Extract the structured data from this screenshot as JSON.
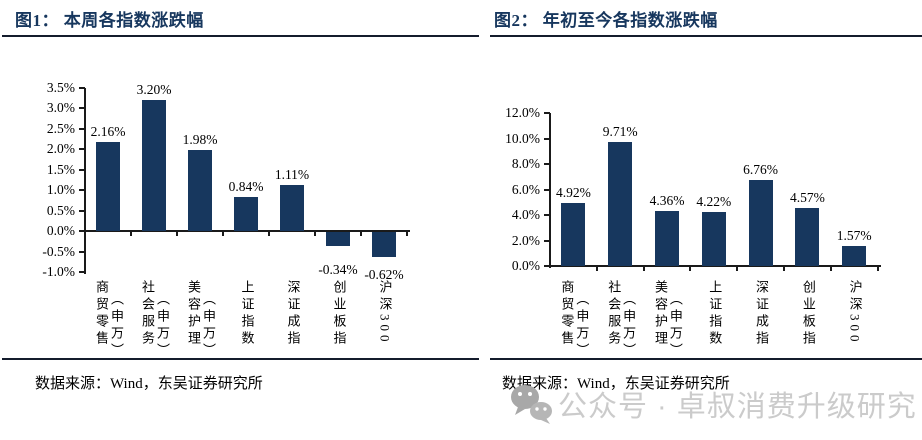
{
  "watermark": {
    "text": "公众号 · 卓叔消费升级研究",
    "icon": "wechat-icon",
    "color": "#cbcbcb"
  },
  "chart_data": [
    {
      "type": "bar",
      "title": "图1： 本周各指数涨跌幅",
      "source": "数据来源：Wind，东吴证券研究所",
      "categories": [
        {
          "main": "商贸零售",
          "sub": "（申万）"
        },
        {
          "main": "社会服务",
          "sub": "（申万）"
        },
        {
          "main": "美容护理",
          "sub": "（申万）"
        },
        {
          "main": "上证指数",
          "sub": ""
        },
        {
          "main": "深证成指",
          "sub": ""
        },
        {
          "main": "创业板指",
          "sub": ""
        },
        {
          "main": "沪深300",
          "sub": ""
        }
      ],
      "values": [
        2.16,
        3.2,
        1.98,
        0.84,
        1.11,
        -0.34,
        -0.62
      ],
      "point_labels": [
        "2.16%",
        "3.20%",
        "1.98%",
        "0.84%",
        "1.11%",
        "-0.34%",
        "-0.62%"
      ],
      "ylim": [
        -1.0,
        3.5
      ],
      "yticks": [
        {
          "v": 3.5,
          "label": "3.5%"
        },
        {
          "v": 3.0,
          "label": "3.0%"
        },
        {
          "v": 2.5,
          "label": "2.5%"
        },
        {
          "v": 2.0,
          "label": "2.0%"
        },
        {
          "v": 1.5,
          "label": "1.5%"
        },
        {
          "v": 1.0,
          "label": "1.0%"
        },
        {
          "v": 0.5,
          "label": "0.5%"
        },
        {
          "v": 0.0,
          "label": "0.0%"
        },
        {
          "v": -0.5,
          "label": "-0.5%"
        },
        {
          "v": -1.0,
          "label": "-1.0%"
        }
      ],
      "bar_color": "#17375E",
      "grid": false,
      "legend": null
    },
    {
      "type": "bar",
      "title": "图2： 年初至今各指数涨跌幅",
      "source": "数据来源：Wind，东吴证券研究所",
      "categories": [
        {
          "main": "商贸零售",
          "sub": "（申万）"
        },
        {
          "main": "社会服务",
          "sub": "（申万）"
        },
        {
          "main": "美容护理",
          "sub": "（申万）"
        },
        {
          "main": "上证指数",
          "sub": ""
        },
        {
          "main": "深证成指",
          "sub": ""
        },
        {
          "main": "创业板指",
          "sub": ""
        },
        {
          "main": "沪深300",
          "sub": ""
        }
      ],
      "values": [
        4.92,
        9.71,
        4.36,
        4.22,
        6.76,
        4.57,
        1.57
      ],
      "point_labels": [
        "4.92%",
        "9.71%",
        "4.36%",
        "4.22%",
        "6.76%",
        "4.57%",
        "1.57%"
      ],
      "ylim": [
        0.0,
        12.0
      ],
      "yticks": [
        {
          "v": 12.0,
          "label": "12.0%"
        },
        {
          "v": 10.0,
          "label": "10.0%"
        },
        {
          "v": 8.0,
          "label": "8.0%"
        },
        {
          "v": 6.0,
          "label": "6.0%"
        },
        {
          "v": 4.0,
          "label": "4.0%"
        },
        {
          "v": 2.0,
          "label": "2.0%"
        },
        {
          "v": 0.0,
          "label": "0.0%"
        }
      ],
      "bar_color": "#17375E",
      "grid": false,
      "legend": null
    }
  ]
}
